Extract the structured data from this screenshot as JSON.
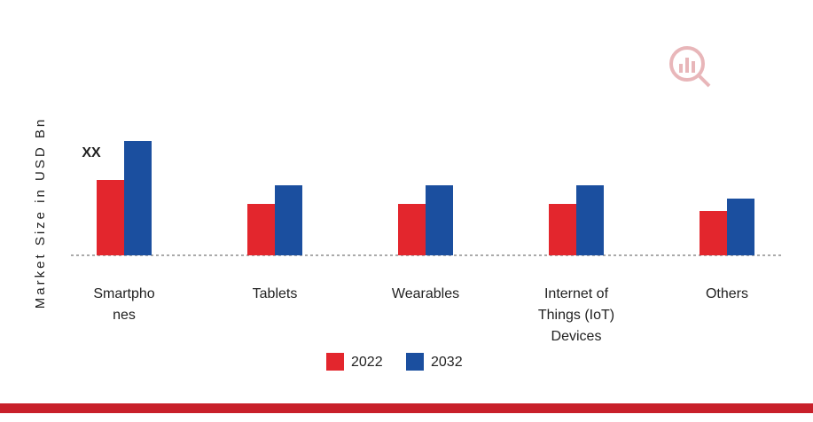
{
  "chart_data": {
    "type": "bar",
    "y_label": "Market Size in USD Bn",
    "categories": [
      "Smartpho\nnes",
      "Tablets",
      "Wearables",
      "Internet of\nThings (IoT)\nDevices",
      "Others"
    ],
    "series": [
      {
        "name": "2022",
        "color": "#e3262d",
        "values": [
          85,
          58,
          58,
          58,
          50
        ]
      },
      {
        "name": "2032",
        "color": "#1b4f9f",
        "values": [
          129,
          79,
          79,
          79,
          64
        ]
      }
    ],
    "annotation": "XX",
    "ylim": [
      0,
      140
    ]
  }
}
